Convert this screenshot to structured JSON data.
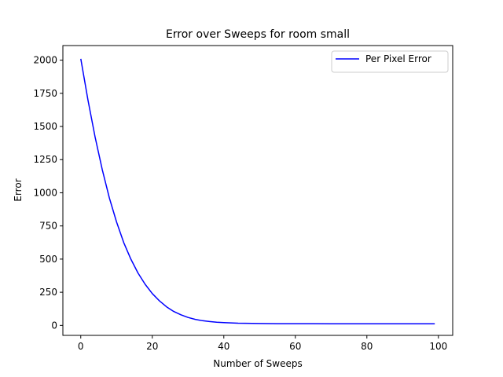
{
  "chart_data": {
    "type": "line",
    "title": "Error over Sweeps for room small",
    "xlabel": "Number of Sweeps",
    "ylabel": "Error",
    "xlim": [
      -5,
      104
    ],
    "ylim": [
      -75,
      2110
    ],
    "xticks": [
      0,
      20,
      40,
      60,
      80,
      100
    ],
    "yticks": [
      0,
      250,
      500,
      750,
      1000,
      1250,
      1500,
      1750,
      2000
    ],
    "grid": false,
    "legend_position": "upper right",
    "series": [
      {
        "name": "Per Pixel Error",
        "color": "#0000ff",
        "x": [
          0,
          2,
          4,
          6,
          8,
          10,
          12,
          14,
          16,
          18,
          20,
          22,
          24,
          26,
          28,
          30,
          32,
          34,
          36,
          38,
          40,
          42,
          44,
          46,
          48,
          50,
          55,
          60,
          65,
          70,
          75,
          80,
          85,
          90,
          95,
          99
        ],
        "y": [
          2010,
          1700,
          1420,
          1175,
          960,
          780,
          625,
          500,
          395,
          310,
          240,
          185,
          140,
          105,
          80,
          60,
          46,
          36,
          29,
          24,
          21,
          19,
          17,
          16,
          15,
          14.5,
          13.5,
          13,
          13,
          12.8,
          12.6,
          12.5,
          12.5,
          12.4,
          12.3,
          12.3
        ]
      }
    ]
  }
}
